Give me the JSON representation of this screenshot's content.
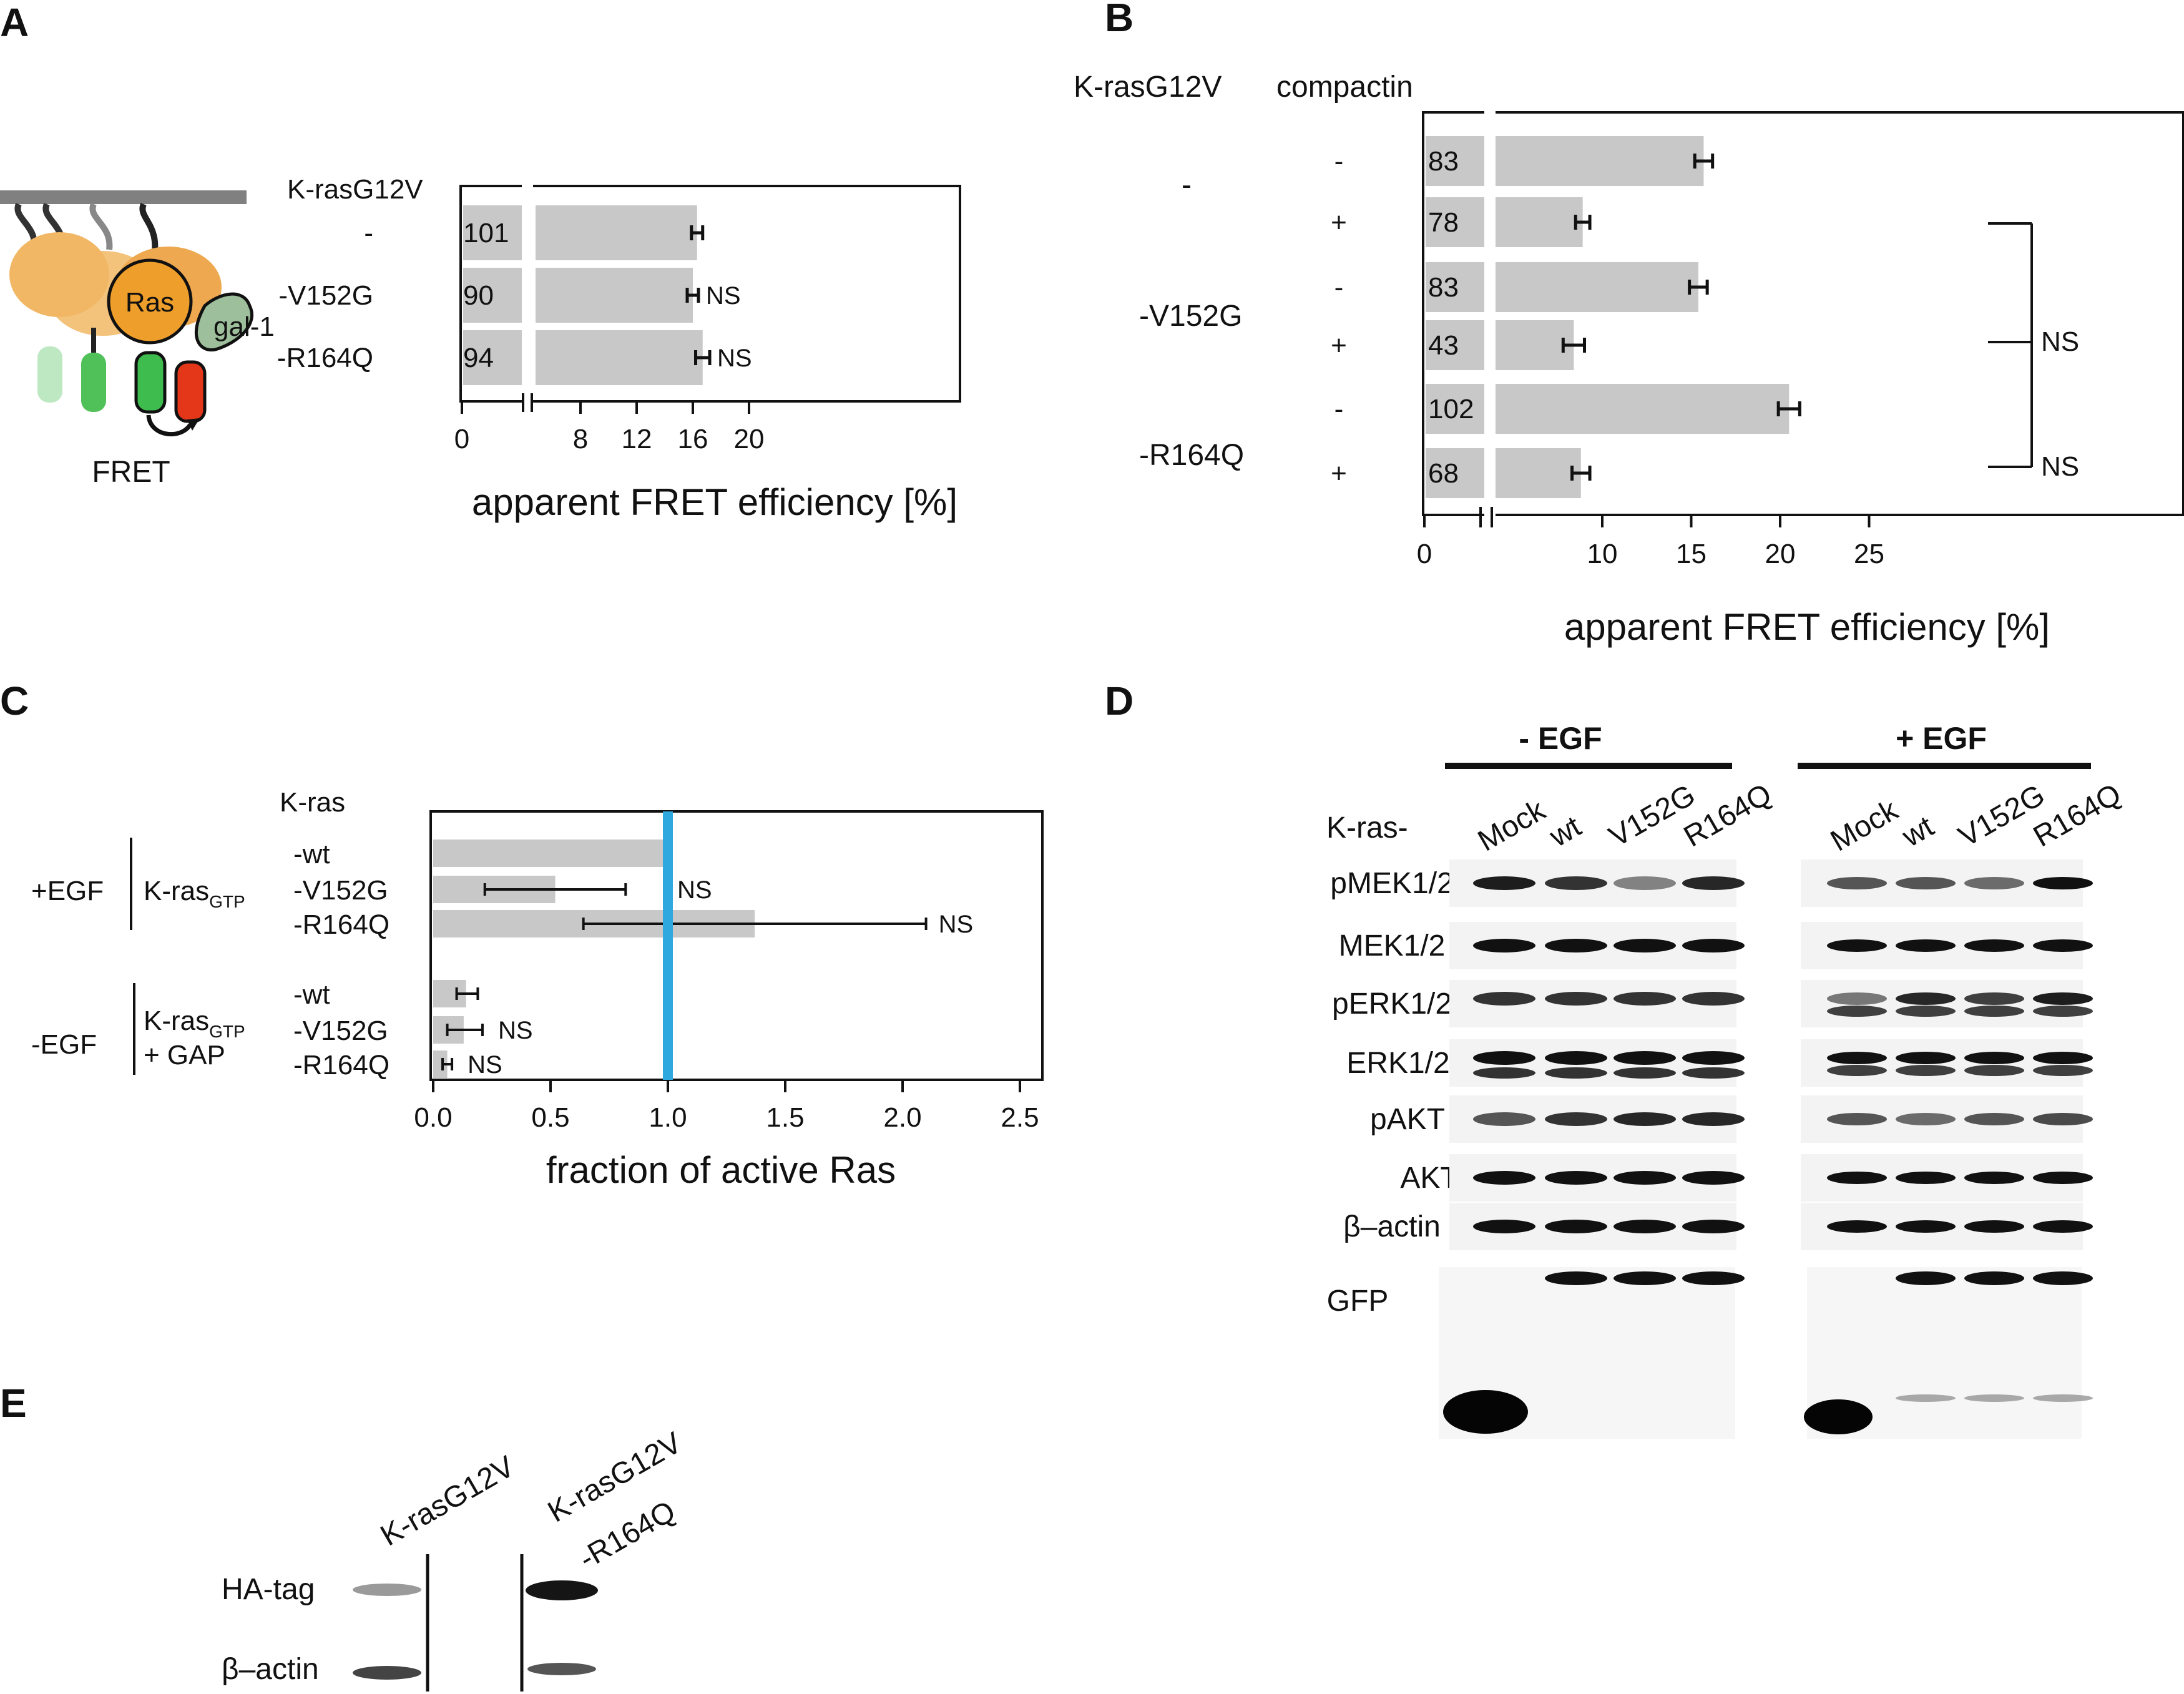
{
  "panels": {
    "A": {
      "label": "A",
      "schematic": {
        "ras_label": "Ras",
        "gal_label": "gal-1",
        "fret_label": "FRET"
      },
      "header": "K-rasG12V",
      "rows": [
        {
          "label": "-",
          "count": "101",
          "value": 16.3,
          "err": 0.4,
          "sig": ""
        },
        {
          "label": "-V152G",
          "count": "90",
          "value": 16.0,
          "err": 0.4,
          "sig": "NS"
        },
        {
          "label": "-R164Q",
          "count": "94",
          "value": 16.7,
          "err": 0.5,
          "sig": "NS"
        }
      ],
      "ticks": [
        "0",
        "8",
        "12",
        "16",
        "20"
      ],
      "xlabel": "apparent FRET efficiency [%]"
    },
    "B": {
      "label": "B",
      "header_left": "K-rasG12V",
      "header_right": "compactin",
      "groups": [
        {
          "label": "-"
        },
        {
          "label": "-V152G"
        },
        {
          "label": "-R164Q"
        }
      ],
      "rows": [
        {
          "compactin": "-",
          "count": "83",
          "value": 15.7,
          "err": 0.5
        },
        {
          "compactin": "+",
          "count": "78",
          "value": 8.9,
          "err": 0.4
        },
        {
          "compactin": "-",
          "count": "83",
          "value": 15.4,
          "err": 0.5
        },
        {
          "compactin": "+",
          "count": "43",
          "value": 8.4,
          "err": 0.6
        },
        {
          "compactin": "-",
          "count": "102",
          "value": 20.5,
          "err": 0.6
        },
        {
          "compactin": "+",
          "count": "68",
          "value": 8.8,
          "err": 0.5
        }
      ],
      "brackets": [
        {
          "sig": "NS"
        },
        {
          "sig": "NS"
        }
      ],
      "ticks": [
        "0",
        "10",
        "15",
        "20",
        "25"
      ],
      "xlabel": "apparent FRET efficiency [%]"
    },
    "C": {
      "label": "C",
      "header": "K-ras",
      "cond_egf_plus": "+EGF",
      "cond_egf_minus": "-EGF",
      "kras_gtp_main": "K-ras",
      "kras_gtp_sub": "GTP",
      "gap_label": "+ GAP",
      "rows": [
        {
          "label": "-wt",
          "value": 1.0,
          "err_low": 0.0,
          "err_high": 0.0,
          "sig": ""
        },
        {
          "label": "-V152G",
          "value": 0.52,
          "err_low": 0.22,
          "err_high": 0.82,
          "sig": "NS"
        },
        {
          "label": "-R164Q",
          "value": 1.37,
          "err_low": 0.64,
          "err_high": 2.1,
          "sig": "NS"
        },
        {
          "label": "-wt",
          "value": 0.14,
          "err_low": 0.1,
          "err_high": 0.19,
          "sig": ""
        },
        {
          "label": "-V152G",
          "value": 0.13,
          "err_low": 0.06,
          "err_high": 0.21,
          "sig": "NS"
        },
        {
          "label": "-R164Q",
          "value": 0.06,
          "err_low": 0.04,
          "err_high": 0.08,
          "sig": "NS"
        }
      ],
      "reference_line": 1.0,
      "ticks": [
        "0.0",
        "0.5",
        "1.0",
        "1.5",
        "2.0",
        "2.5"
      ],
      "xlabel": "fraction of active Ras"
    },
    "D": {
      "label": "D",
      "group_minus": "- EGF",
      "group_plus": "+ EGF",
      "row_header": "K-ras-",
      "lanes": [
        "Mock",
        "wt",
        "V152G",
        "R164Q"
      ],
      "blots": [
        "pMEK1/2",
        "MEK1/2",
        "pERK1/2",
        "ERK1/2",
        "pAKT",
        "AKT",
        "β–actin",
        "GFP"
      ]
    },
    "E": {
      "label": "E",
      "lanes": [
        "K-rasG12V",
        "K-rasG12V",
        "-R164Q"
      ],
      "blots": [
        "HA-tag",
        "β–actin"
      ]
    }
  }
}
